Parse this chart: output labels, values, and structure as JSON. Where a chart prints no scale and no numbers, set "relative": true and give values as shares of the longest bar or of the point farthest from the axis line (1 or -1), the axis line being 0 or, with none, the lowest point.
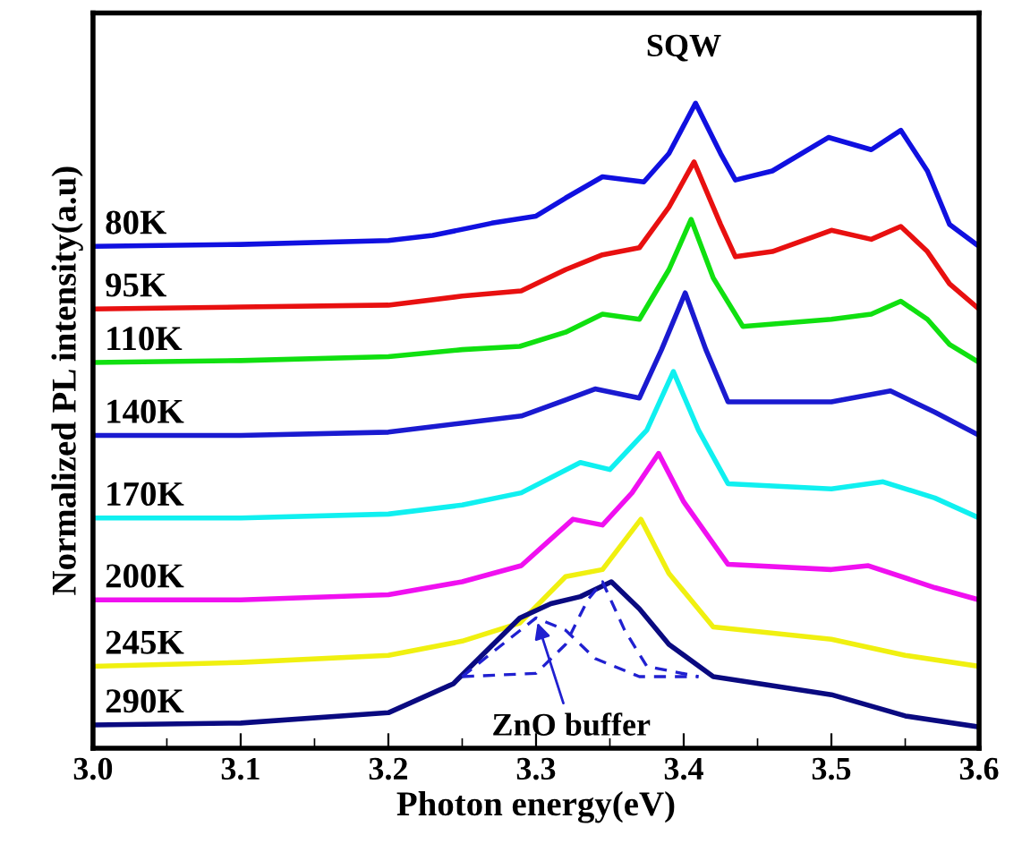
{
  "chart_data": {
    "type": "line",
    "relative": true,
    "xlabel": "Photon energy(eV)",
    "ylabel": "Normalized PL intensity(a.u)",
    "xlim": [
      3.0,
      3.6
    ],
    "xticks": [
      {
        "value": 3.0,
        "label": "3.0"
      },
      3.1,
      3.2,
      3.3,
      3.4,
      3.5,
      {
        "value": 3.6,
        "label": "3.6"
      }
    ],
    "grid": false,
    "legend": false,
    "marker": "none",
    "annotations": [
      {
        "text": "SQW",
        "x": 3.408,
        "y": 1.0
      },
      {
        "text": "ZnO buffer",
        "x": 3.3,
        "y": 0.202
      }
    ],
    "series": [
      {
        "name": "80K",
        "color": "#1010e0",
        "x": [
          3.0,
          3.1,
          3.2,
          3.23,
          3.27,
          3.3,
          3.32,
          3.345,
          3.373,
          3.39,
          3.408,
          3.425,
          3.435,
          3.46,
          3.498,
          3.527,
          3.547,
          3.565,
          3.58,
          3.6
        ],
        "values": [
          0.778,
          0.781,
          0.787,
          0.795,
          0.814,
          0.825,
          0.853,
          0.886,
          0.878,
          0.922,
          1.0,
          0.922,
          0.881,
          0.895,
          0.947,
          0.928,
          0.958,
          0.895,
          0.812,
          0.778
        ]
      },
      {
        "name": "95K",
        "color": "#e81010",
        "x": [
          3.0,
          3.1,
          3.2,
          3.25,
          3.29,
          3.32,
          3.345,
          3.37,
          3.39,
          3.407,
          3.425,
          3.435,
          3.46,
          3.5,
          3.527,
          3.547,
          3.565,
          3.58,
          3.6
        ],
        "values": [
          0.681,
          0.684,
          0.687,
          0.701,
          0.709,
          0.742,
          0.765,
          0.776,
          0.839,
          0.909,
          0.812,
          0.762,
          0.77,
          0.803,
          0.789,
          0.809,
          0.77,
          0.72,
          0.681
        ]
      },
      {
        "name": "110K",
        "color": "#10e010",
        "x": [
          3.0,
          3.1,
          3.2,
          3.25,
          3.289,
          3.32,
          3.345,
          3.37,
          3.39,
          3.405,
          3.42,
          3.44,
          3.5,
          3.527,
          3.547,
          3.565,
          3.58,
          3.6
        ],
        "values": [
          0.598,
          0.601,
          0.607,
          0.618,
          0.623,
          0.645,
          0.673,
          0.665,
          0.742,
          0.82,
          0.729,
          0.654,
          0.665,
          0.673,
          0.693,
          0.665,
          0.626,
          0.598
        ]
      },
      {
        "name": "140K",
        "color": "#1a1ad0",
        "x": [
          3.0,
          3.1,
          3.2,
          3.25,
          3.29,
          3.32,
          3.34,
          3.37,
          3.385,
          3.401,
          3.415,
          3.43,
          3.5,
          3.54,
          3.57,
          3.6
        ],
        "values": [
          0.485,
          0.485,
          0.49,
          0.504,
          0.515,
          0.54,
          0.557,
          0.543,
          0.618,
          0.706,
          0.618,
          0.537,
          0.537,
          0.554,
          0.521,
          0.485
        ]
      },
      {
        "name": "170K",
        "color": "#10f0f0",
        "x": [
          3.0,
          3.1,
          3.2,
          3.25,
          3.29,
          3.33,
          3.35,
          3.375,
          3.393,
          3.41,
          3.43,
          3.5,
          3.535,
          3.57,
          3.6
        ],
        "values": [
          0.357,
          0.357,
          0.363,
          0.377,
          0.396,
          0.443,
          0.432,
          0.493,
          0.584,
          0.493,
          0.41,
          0.402,
          0.413,
          0.388,
          0.357
        ]
      },
      {
        "name": "200K",
        "color": "#f010f0",
        "x": [
          3.0,
          3.1,
          3.2,
          3.25,
          3.29,
          3.325,
          3.345,
          3.365,
          3.383,
          3.4,
          3.43,
          3.5,
          3.525,
          3.57,
          3.6
        ],
        "values": [
          0.23,
          0.23,
          0.238,
          0.258,
          0.283,
          0.355,
          0.346,
          0.396,
          0.457,
          0.382,
          0.285,
          0.277,
          0.283,
          0.249,
          0.23
        ]
      },
      {
        "name": "245K",
        "color": "#f0f010",
        "x": [
          3.0,
          3.1,
          3.2,
          3.25,
          3.289,
          3.32,
          3.345,
          3.371,
          3.39,
          3.42,
          3.5,
          3.55,
          3.6
        ],
        "values": [
          0.127,
          0.133,
          0.144,
          0.166,
          0.194,
          0.266,
          0.277,
          0.355,
          0.271,
          0.188,
          0.169,
          0.144,
          0.127
        ]
      },
      {
        "name": "290K",
        "color": "#0a0a80",
        "x": [
          3.0,
          3.1,
          3.2,
          3.244,
          3.289,
          3.31,
          3.33,
          3.351,
          3.37,
          3.39,
          3.42,
          3.5,
          3.55,
          3.6
        ],
        "values": [
          0.036,
          0.039,
          0.055,
          0.1,
          0.202,
          0.224,
          0.235,
          0.258,
          0.216,
          0.161,
          0.111,
          0.083,
          0.05,
          0.033
        ]
      },
      {
        "color": "#2020d0",
        "line_style": "dashed",
        "x": [
          3.25,
          3.28,
          3.3,
          3.32,
          3.34,
          3.37,
          3.41
        ],
        "values": [
          0.111,
          0.166,
          0.202,
          0.183,
          0.139,
          0.111,
          0.111
        ]
      },
      {
        "color": "#2020d0",
        "line_style": "dashed",
        "x": [
          3.25,
          3.3,
          3.32,
          3.335,
          3.345,
          3.36,
          3.375,
          3.41
        ],
        "values": [
          0.111,
          0.116,
          0.161,
          0.23,
          0.258,
          0.183,
          0.127,
          0.111
        ]
      }
    ]
  }
}
